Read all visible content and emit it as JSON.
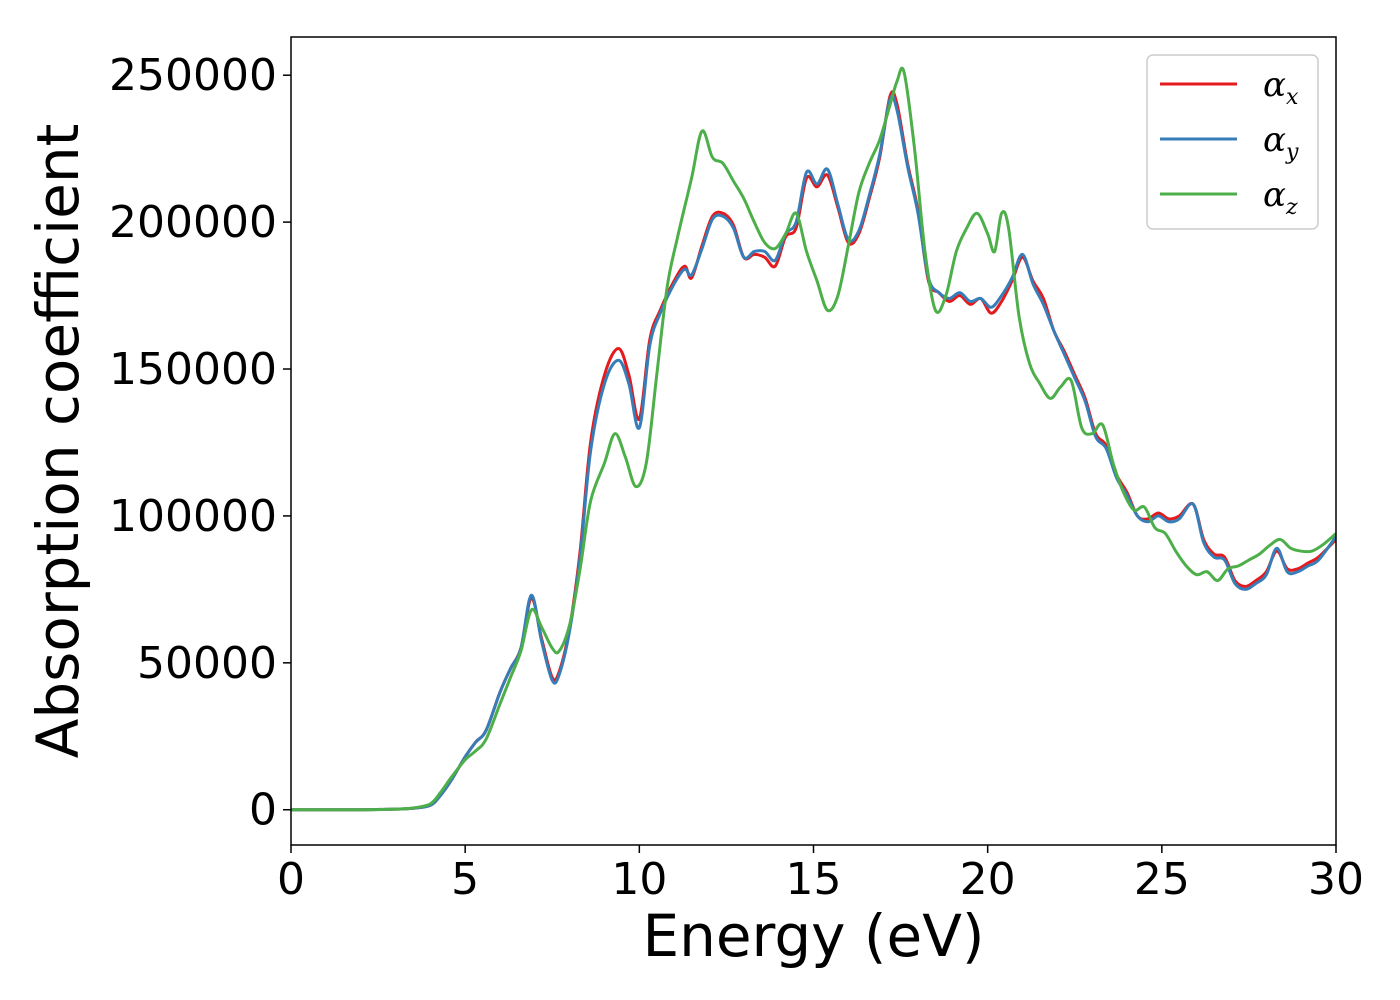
{
  "chart_data": {
    "type": "line",
    "title": "",
    "xlabel": "Energy (eV)",
    "ylabel": "Absorption coefficient",
    "xlim": [
      0,
      30
    ],
    "ylim": [
      -12000,
      263000
    ],
    "xticks": [
      0,
      5,
      10,
      15,
      20,
      25,
      30
    ],
    "xtick_labels": [
      "0",
      "5",
      "10",
      "15",
      "20",
      "25",
      "30"
    ],
    "yticks": [
      0,
      50000,
      100000,
      150000,
      200000,
      250000
    ],
    "ytick_labels": [
      "0",
      "50000",
      "100000",
      "150000",
      "200000",
      "250000"
    ],
    "grid": false,
    "legend_position": "top-right",
    "series": [
      {
        "name": "α",
        "subscript": "x",
        "color": "#e41a1c",
        "x": [
          0,
          1,
          2,
          3,
          3.5,
          4,
          4.3,
          4.6,
          5,
          5.3,
          5.6,
          6,
          6.3,
          6.6,
          6.9,
          7.2,
          7.5,
          7.7,
          8,
          8.3,
          8.6,
          9,
          9.4,
          9.7,
          10,
          10.3,
          10.6,
          11,
          11.3,
          11.5,
          11.8,
          12.1,
          12.4,
          12.7,
          13,
          13.3,
          13.6,
          13.9,
          14.2,
          14.5,
          14.8,
          15.1,
          15.4,
          15.7,
          16,
          16.3,
          16.6,
          16.9,
          17.2,
          17.4,
          17.7,
          18,
          18.3,
          18.6,
          18.9,
          19.2,
          19.5,
          19.8,
          20.1,
          20.4,
          20.7,
          21,
          21.3,
          21.6,
          21.9,
          22.2,
          22.5,
          22.8,
          23.1,
          23.4,
          23.7,
          24,
          24.3,
          24.6,
          24.9,
          25.2,
          25.5,
          25.9,
          26.2,
          26.5,
          26.8,
          27.1,
          27.4,
          27.7,
          28,
          28.3,
          28.6,
          28.9,
          29.2,
          29.5,
          30
        ],
        "values": [
          0,
          0,
          0,
          200,
          500,
          1500,
          5000,
          10000,
          18000,
          23000,
          27000,
          40000,
          48000,
          55000,
          72000,
          58000,
          45000,
          47000,
          62000,
          88000,
          125000,
          148000,
          157000,
          148000,
          133000,
          160000,
          170000,
          180000,
          185000,
          181000,
          192000,
          202000,
          203000,
          199000,
          188000,
          189000,
          188000,
          185000,
          195000,
          198000,
          215000,
          212000,
          216000,
          205000,
          193000,
          196000,
          208000,
          222000,
          243000,
          240000,
          220000,
          204000,
          180000,
          176000,
          173000,
          175000,
          172000,
          174000,
          169000,
          173000,
          180000,
          188000,
          180000,
          174000,
          163000,
          156000,
          148000,
          140000,
          128000,
          124000,
          114000,
          108000,
          100000,
          99000,
          101000,
          99000,
          100000,
          104000,
          92000,
          87000,
          86000,
          78000,
          76000,
          78000,
          81000,
          88000,
          82000,
          82000,
          84000,
          86000,
          92000
        ]
      },
      {
        "name": "α",
        "subscript": "y",
        "color": "#377eb8",
        "x": [
          0,
          1,
          2,
          3,
          3.5,
          4,
          4.3,
          4.6,
          5,
          5.3,
          5.6,
          6,
          6.3,
          6.6,
          6.9,
          7.2,
          7.5,
          7.7,
          8,
          8.3,
          8.6,
          9,
          9.4,
          9.7,
          10,
          10.3,
          10.6,
          11,
          11.3,
          11.5,
          11.8,
          12.1,
          12.4,
          12.7,
          13,
          13.3,
          13.6,
          13.9,
          14.2,
          14.5,
          14.8,
          15.1,
          15.4,
          15.7,
          16,
          16.3,
          16.6,
          16.9,
          17.2,
          17.4,
          17.7,
          18,
          18.3,
          18.6,
          18.9,
          19.2,
          19.5,
          19.8,
          20.1,
          20.4,
          20.7,
          21,
          21.3,
          21.6,
          21.9,
          22.2,
          22.5,
          22.8,
          23.1,
          23.4,
          23.7,
          24,
          24.3,
          24.6,
          24.9,
          25.2,
          25.5,
          25.9,
          26.2,
          26.5,
          26.8,
          27.1,
          27.4,
          27.7,
          28,
          28.3,
          28.6,
          28.9,
          29.2,
          29.5,
          30
        ],
        "values": [
          0,
          0,
          0,
          200,
          500,
          1500,
          5000,
          10000,
          18000,
          23000,
          27000,
          40000,
          48000,
          55000,
          73000,
          57000,
          44000,
          46000,
          61000,
          86000,
          122000,
          145000,
          153000,
          145000,
          130000,
          158000,
          169000,
          179000,
          184000,
          182000,
          191000,
          201000,
          202000,
          198000,
          188000,
          190000,
          190000,
          187000,
          196000,
          200000,
          217000,
          213000,
          218000,
          206000,
          194000,
          197000,
          209000,
          223000,
          242000,
          238000,
          219000,
          203000,
          181000,
          176000,
          174000,
          176000,
          173000,
          174000,
          171000,
          175000,
          181000,
          189000,
          179000,
          172000,
          163000,
          155000,
          147000,
          139000,
          127000,
          123000,
          113000,
          107000,
          100000,
          98000,
          100000,
          98000,
          99000,
          104000,
          91000,
          86000,
          85000,
          77000,
          75000,
          77000,
          80000,
          89000,
          81000,
          81000,
          83000,
          85000,
          93000
        ]
      },
      {
        "name": "α",
        "subscript": "z",
        "color": "#4daf4a",
        "x": [
          0,
          1,
          2,
          3,
          3.5,
          4,
          4.3,
          4.6,
          5,
          5.3,
          5.6,
          6,
          6.3,
          6.6,
          6.9,
          7.2,
          7.5,
          7.7,
          8,
          8.3,
          8.6,
          9,
          9.3,
          9.6,
          9.9,
          10.2,
          10.5,
          10.8,
          11.1,
          11.5,
          11.8,
          12.1,
          12.4,
          12.7,
          13,
          13.3,
          13.6,
          13.9,
          14.2,
          14.5,
          14.8,
          15.1,
          15.4,
          15.7,
          16,
          16.3,
          16.6,
          16.9,
          17.2,
          17.4,
          17.6,
          17.9,
          18.2,
          18.5,
          18.8,
          19.1,
          19.4,
          19.7,
          20,
          20.2,
          20.4,
          20.6,
          20.9,
          21.2,
          21.5,
          21.8,
          22.1,
          22.4,
          22.7,
          23,
          23.3,
          23.6,
          23.9,
          24.2,
          24.5,
          24.8,
          25.1,
          25.4,
          25.7,
          26,
          26.3,
          26.6,
          26.9,
          27.2,
          27.5,
          27.8,
          28.1,
          28.4,
          28.7,
          29,
          29.3,
          29.6,
          30
        ],
        "values": [
          0,
          0,
          0,
          200,
          600,
          2000,
          6000,
          11000,
          17000,
          20000,
          24000,
          36000,
          45000,
          54000,
          68000,
          62000,
          55000,
          54000,
          63000,
          82000,
          105000,
          118000,
          128000,
          120000,
          110000,
          118000,
          148000,
          178000,
          195000,
          215000,
          231000,
          222000,
          220000,
          214000,
          208000,
          200000,
          193000,
          191000,
          196000,
          203000,
          190000,
          180000,
          170000,
          175000,
          192000,
          210000,
          220000,
          228000,
          240000,
          248000,
          251000,
          225000,
          190000,
          170000,
          175000,
          190000,
          198000,
          203000,
          196000,
          190000,
          203000,
          198000,
          168000,
          152000,
          145000,
          140000,
          144000,
          146000,
          130000,
          128000,
          131000,
          118000,
          108000,
          102000,
          103000,
          96000,
          94000,
          88000,
          83000,
          80000,
          81000,
          78000,
          82000,
          83000,
          85000,
          87000,
          90000,
          92000,
          89000,
          88000,
          88000,
          90000,
          94000
        ]
      }
    ]
  }
}
